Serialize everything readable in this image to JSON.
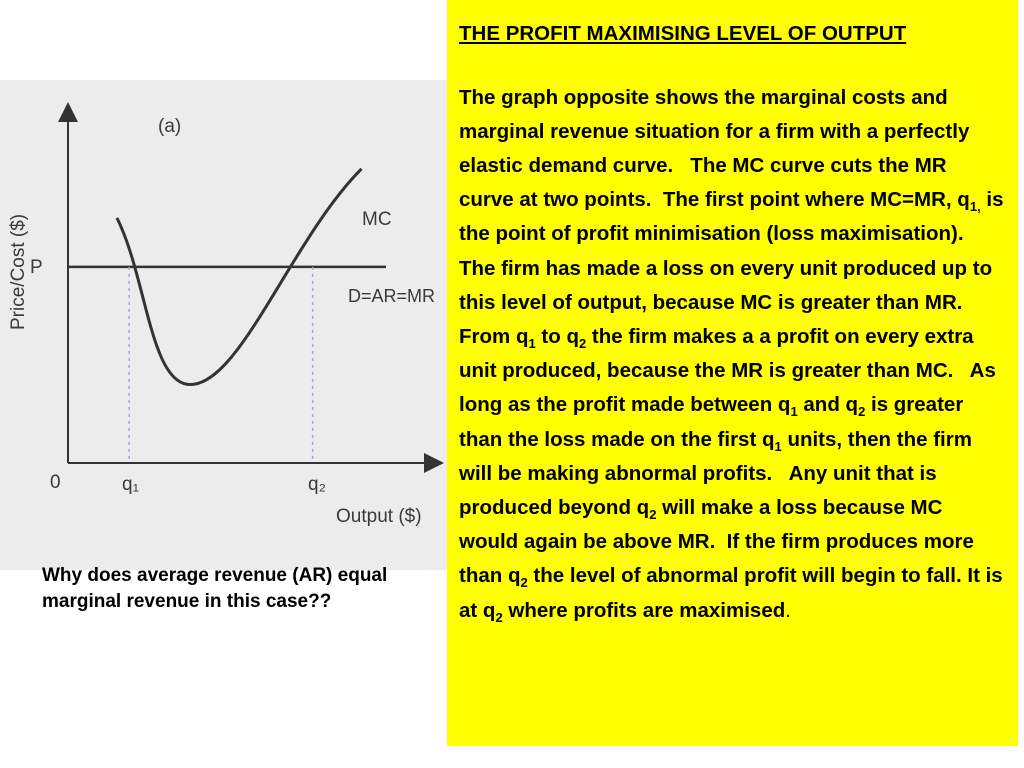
{
  "figure": {
    "panel_label": "(a)",
    "ylabel": "Price/Cost ($)",
    "xlabel": "Output ($)",
    "origin_label": "0",
    "price_label": "P",
    "mc_label": "MC",
    "demand_label": "D=AR=MR",
    "q1_label": "q₁",
    "q2_label": "q₂"
  },
  "chart_data": {
    "type": "line",
    "title": "(a)",
    "xlabel": "Output ($)",
    "ylabel": "Price/Cost ($)",
    "x_ticks": [
      "q₁",
      "q₂"
    ],
    "y_ticks": [
      "P"
    ],
    "series": [
      {
        "name": "MC",
        "points": [
          [
            0.2,
            1.25
          ],
          [
            0.5,
            0.4
          ],
          [
            1.2,
            1.5
          ]
        ]
      },
      {
        "name": "D=AR=MR",
        "points": [
          [
            0,
            1.0
          ],
          [
            1.3,
            1.0
          ]
        ]
      }
    ],
    "annotations": [
      {
        "text": "q₁",
        "x": 0.25,
        "y": 1.0
      },
      {
        "text": "q₂",
        "x": 1.0,
        "y": 1.0
      }
    ],
    "xlim": [
      0,
      1.3
    ],
    "ylim": [
      0,
      1.8
    ],
    "grid": false,
    "colors": {
      "mc": "#333333",
      "demand": "#333333",
      "dashed": "#9aa8d8"
    }
  },
  "question": "Why does average revenue (AR) equal marginal revenue in this case??",
  "panel": {
    "background": "#ffff00",
    "title": "THE PROFIT MAXIMISING LEVEL OF OUTPUT",
    "t1": "The graph opposite shows the marginal costs and marginal revenue situation for a firm with a perfectly elastic demand curve.   The MC curve cuts the MR curve at two points.  The first point where MC=MR, q",
    "s1": "1,",
    "t2": " is the point of profit minimisation (loss maximisation).  The firm has made a loss on every unit produced up to this level of output, because MC is greater than MR.  From q",
    "s2": "1",
    "t3": " to q",
    "s3": "2",
    "t4": " the firm makes a a profit on every extra unit produced, because the MR is greater than MC.   As long as the profit made between q",
    "s4": "1",
    "t5": " and q",
    "s5": "2",
    "t6": " is greater than the loss made on the first q",
    "s6": "1",
    "t7": " units, then the firm will be making abnormal profits.   Any unit that is produced beyond q",
    "s7": "2",
    "t8": " will make a loss because MC would again be above MR.  If the firm produces more than q",
    "s8": "2",
    "t9": " the level of abnormal profit will begin to fall. It is at q",
    "s9": "2",
    "t10": " where profits are maximised",
    "t11": "."
  }
}
